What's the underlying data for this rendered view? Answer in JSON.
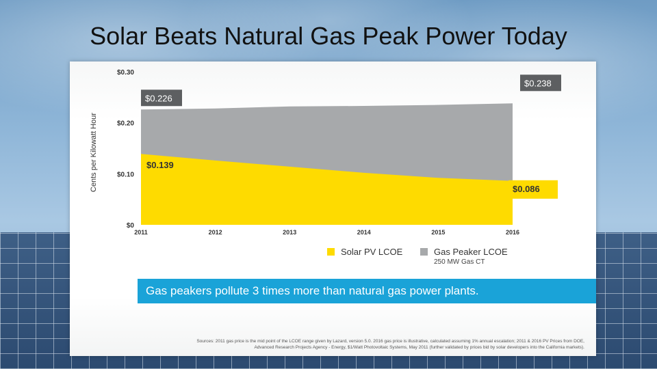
{
  "slide": {
    "title": "Solar Beats Natural Gas Peak Power Today"
  },
  "chart_data": {
    "type": "area",
    "title": "",
    "ylabel": "Cents per Kilowatt Hour",
    "xlabel": "",
    "x": [
      2011,
      2012,
      2013,
      2014,
      2015,
      2016
    ],
    "x_tick_labels": [
      "2011",
      "2012",
      "2013",
      "2014",
      "2015",
      "2016"
    ],
    "ylim": [
      0,
      0.3
    ],
    "y_ticks": [
      0,
      0.1,
      0.2,
      0.3
    ],
    "y_tick_labels": [
      "$0",
      "$0.10",
      "$0.20",
      "$0.30"
    ],
    "grid": false,
    "legend_placement": "bottom",
    "series": [
      {
        "name": "Gas Peaker LCOE",
        "subtitle": "250 MW Gas CT",
        "color": "#a7a9ab",
        "values": [
          0.226,
          0.228,
          0.232,
          0.233,
          0.235,
          0.238
        ]
      },
      {
        "name": "Solar PV LCOE",
        "color": "#fedb00",
        "values": [
          0.139,
          0.126,
          0.114,
          0.102,
          0.092,
          0.086
        ]
      }
    ],
    "annotations": [
      {
        "series": "Gas Peaker LCOE",
        "point": "start",
        "text": "$0.226",
        "style": "dark-box"
      },
      {
        "series": "Gas Peaker LCOE",
        "point": "end",
        "text": "$0.238",
        "style": "dark-box"
      },
      {
        "series": "Solar PV LCOE",
        "point": "start",
        "text": "$0.139",
        "style": "plain"
      },
      {
        "series": "Solar PV LCOE",
        "point": "end",
        "text": "$0.086",
        "style": "yellow-box"
      }
    ]
  },
  "banner": {
    "text": "Gas peakers pollute 3 times more than natural gas power plants."
  },
  "sources": {
    "line1": "Sources: 2011 gas price is the mid point of the LCOE range given by Lazard, version 5.0. 2016 gas price is illustrative, calculated assuming 1% annual escalation; 2011 & 2016 PV Prices from DOE,",
    "line2": "Advanced Research Projects Agency - Energy, $1/Watt Photovoltaic Systems, May 2011 (further validated by prices bid by solar developers into the California markets)."
  },
  "colors": {
    "banner": "#1aa3d8",
    "label_box_dark": "#5d5f61",
    "axis_text": "#333333"
  }
}
